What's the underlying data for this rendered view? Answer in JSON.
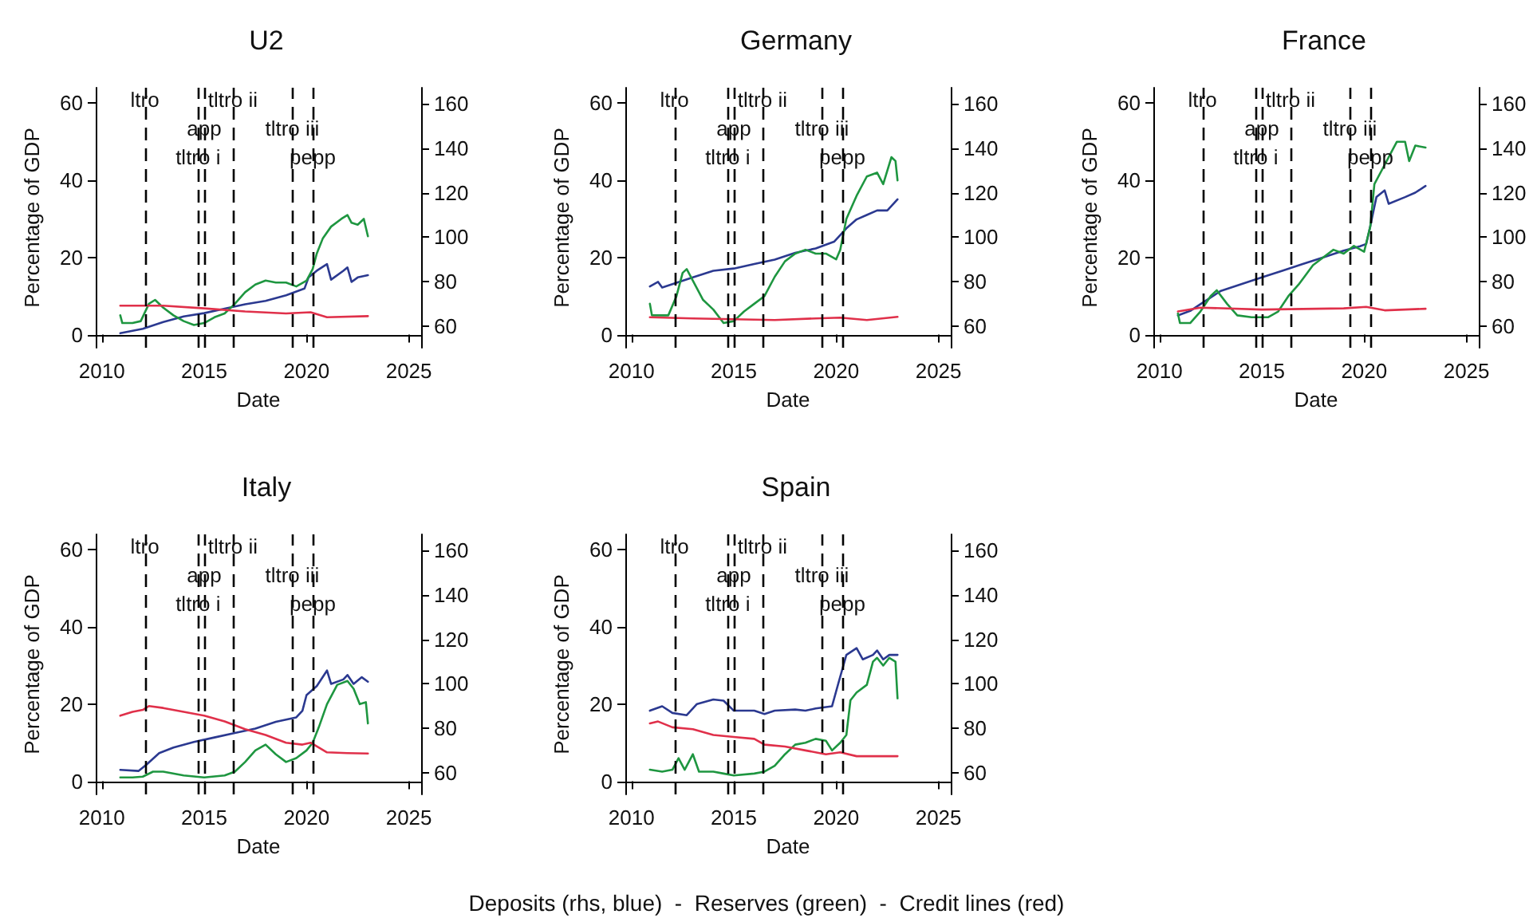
{
  "chart_data": [
    {
      "type": "line",
      "title": "U2",
      "xlabel": "Date",
      "ylabel": "Percentage of GDP",
      "xlim": [
        2009.7,
        2025.6
      ],
      "xticks": [
        2010,
        2015,
        2020,
        2025
      ],
      "ylim": [
        -3.4,
        64
      ],
      "yticks": [
        0,
        20,
        40,
        60
      ],
      "y2lim": [
        50.5,
        167
      ],
      "y2ticks": [
        60,
        80,
        100,
        120,
        140,
        160
      ],
      "grid": false,
      "marker": "none",
      "line_style": "solid",
      "ref_lines": [
        {
          "axis": "x",
          "value": 2012.1,
          "label": "ltro",
          "color": "#000000",
          "line_style": "dashed"
        },
        {
          "axis": "x",
          "value": 2015.0,
          "label": "app",
          "color": "#000000",
          "line_style": "dashed"
        },
        {
          "axis": "x",
          "value": 2014.7,
          "label": "tltro i",
          "color": "#000000",
          "line_style": "dashed"
        },
        {
          "axis": "x",
          "value": 2016.4,
          "label": "tltro ii",
          "color": "#000000",
          "line_style": "dashed"
        },
        {
          "axis": "x",
          "value": 2019.3,
          "label": "tltro iii",
          "color": "#000000",
          "line_style": "dashed"
        },
        {
          "axis": "x",
          "value": 2020.3,
          "label": "pepp",
          "color": "#000000",
          "line_style": "dashed"
        }
      ],
      "series": [
        {
          "color": "#2b3990",
          "axis": "y2",
          "x": [
            2010.9,
            2012,
            2013,
            2014,
            2015,
            2016,
            2017,
            2018,
            2019,
            2019.9,
            2020.1,
            2020.5,
            2021,
            2021.2,
            2021.8,
            2022,
            2022.2,
            2022.5,
            2023
          ],
          "values": [
            57,
            59,
            62,
            64.5,
            66,
            68,
            70,
            71.5,
            74,
            77,
            82,
            85,
            88,
            81,
            85,
            86.5,
            80,
            82,
            83
          ]
        },
        {
          "color": "#1e9640",
          "x": [
            2010.9,
            2011,
            2011.5,
            2011.9,
            2012.3,
            2012.6,
            2013,
            2013.5,
            2014,
            2014.5,
            2015,
            2015.5,
            2016,
            2016.5,
            2017,
            2017.5,
            2018,
            2018.5,
            2019,
            2019.5,
            2020,
            2020.3,
            2020.5,
            2020.8,
            2021.2,
            2021.7,
            2022,
            2022.2,
            2022.5,
            2022.8,
            2023
          ],
          "values": [
            5,
            3,
            3,
            3.5,
            8,
            9,
            7,
            5,
            3.5,
            2.5,
            3,
            4.5,
            5.5,
            8,
            11,
            13,
            14,
            13.5,
            13.5,
            12.5,
            14,
            17,
            21,
            25,
            28,
            30,
            31,
            29,
            28.5,
            30,
            25.5
          ]
        },
        {
          "color": "#e0304a",
          "x": [
            2010.9,
            2013,
            2015,
            2017,
            2019,
            2020.2,
            2021,
            2023
          ],
          "values": [
            7.5,
            7.5,
            6.8,
            6,
            5.5,
            5.8,
            4.5,
            4.8
          ]
        }
      ]
    },
    {
      "type": "line",
      "title": "Germany",
      "xlabel": "Date",
      "ylabel": "Percentage of GDP",
      "xlim": [
        2009.7,
        2025.6
      ],
      "xticks": [
        2010,
        2015,
        2020,
        2025
      ],
      "ylim": [
        -3.4,
        64
      ],
      "yticks": [
        0,
        20,
        40,
        60
      ],
      "y2lim": [
        50.5,
        167
      ],
      "y2ticks": [
        60,
        80,
        100,
        120,
        140,
        160
      ],
      "grid": false,
      "marker": "none",
      "line_style": "solid",
      "ref_lines": [
        {
          "axis": "x",
          "value": 2012.1,
          "label": "ltro",
          "color": "#000000",
          "line_style": "dashed"
        },
        {
          "axis": "x",
          "value": 2015.0,
          "label": "app",
          "color": "#000000",
          "line_style": "dashed"
        },
        {
          "axis": "x",
          "value": 2014.7,
          "label": "tltro i",
          "color": "#000000",
          "line_style": "dashed"
        },
        {
          "axis": "x",
          "value": 2016.4,
          "label": "tltro ii",
          "color": "#000000",
          "line_style": "dashed"
        },
        {
          "axis": "x",
          "value": 2019.3,
          "label": "tltro iii",
          "color": "#000000",
          "line_style": "dashed"
        },
        {
          "axis": "x",
          "value": 2020.3,
          "label": "pepp",
          "color": "#000000",
          "line_style": "dashed"
        }
      ],
      "series": [
        {
          "color": "#2b3990",
          "axis": "y2",
          "x": [
            2010.9,
            2011.3,
            2011.5,
            2012,
            2013,
            2014,
            2015,
            2016,
            2017,
            2018,
            2019,
            2019.9,
            2020.5,
            2021,
            2021.5,
            2022,
            2022.5,
            2023
          ],
          "values": [
            78,
            80,
            77.5,
            79,
            82,
            85,
            86,
            88,
            90,
            93,
            95,
            98,
            104,
            108,
            110,
            112,
            112,
            117
          ]
        },
        {
          "color": "#1e9640",
          "x": [
            2010.9,
            2011,
            2011.8,
            2012.2,
            2012.5,
            2012.7,
            2013,
            2013.5,
            2014,
            2014.5,
            2015,
            2015.5,
            2016,
            2016.5,
            2017,
            2017.5,
            2018,
            2018.5,
            2019,
            2019.5,
            2020,
            2020.2,
            2020.5,
            2021,
            2021.5,
            2022,
            2022.3,
            2022.7,
            2022.9,
            2023
          ],
          "values": [
            8,
            5,
            5,
            10,
            16,
            17,
            14,
            9,
            6.5,
            3,
            3.5,
            6,
            8,
            10,
            15,
            19,
            21,
            22,
            21,
            21,
            19.5,
            22,
            30,
            36,
            41,
            42,
            39,
            46,
            45,
            40
          ]
        },
        {
          "color": "#e0304a",
          "x": [
            2010.9,
            2013,
            2015,
            2017,
            2019,
            2020.2,
            2021.5,
            2023
          ],
          "values": [
            4.5,
            4.2,
            4,
            3.8,
            4.2,
            4.4,
            3.8,
            4.6
          ]
        }
      ]
    },
    {
      "type": "line",
      "title": "France",
      "xlabel": "Date",
      "ylabel": "Percentage of GDP",
      "xlim": [
        2009.7,
        2025.6
      ],
      "xticks": [
        2010,
        2015,
        2020,
        2025
      ],
      "ylim": [
        -3.4,
        64
      ],
      "yticks": [
        0,
        20,
        40,
        60
      ],
      "y2lim": [
        50.5,
        167
      ],
      "y2ticks": [
        60,
        80,
        100,
        120,
        140,
        160
      ],
      "grid": false,
      "marker": "none",
      "line_style": "solid",
      "ref_lines": [
        {
          "axis": "x",
          "value": 2012.1,
          "label": "ltro",
          "color": "#000000",
          "line_style": "dashed"
        },
        {
          "axis": "x",
          "value": 2015.0,
          "label": "app",
          "color": "#000000",
          "line_style": "dashed"
        },
        {
          "axis": "x",
          "value": 2014.7,
          "label": "tltro i",
          "color": "#000000",
          "line_style": "dashed"
        },
        {
          "axis": "x",
          "value": 2016.4,
          "label": "tltro ii",
          "color": "#000000",
          "line_style": "dashed"
        },
        {
          "axis": "x",
          "value": 2019.3,
          "label": "tltro iii",
          "color": "#000000",
          "line_style": "dashed"
        },
        {
          "axis": "x",
          "value": 2020.3,
          "label": "pepp",
          "color": "#000000",
          "line_style": "dashed"
        }
      ],
      "series": [
        {
          "color": "#2b3990",
          "axis": "y2",
          "x": [
            2010.9,
            2011.5,
            2012,
            2013,
            2014,
            2015,
            2016,
            2017,
            2018,
            2019,
            2019.8,
            2020.1,
            2020.3,
            2020.6,
            2021,
            2021.2,
            2022,
            2022.5,
            2023
          ],
          "values": [
            65,
            67,
            70,
            76,
            79,
            82,
            85,
            88,
            91,
            94,
            96,
            97,
            105,
            118,
            121,
            115,
            118,
            120,
            123
          ]
        },
        {
          "color": "#1e9640",
          "x": [
            2010.9,
            2011,
            2011.5,
            2012,
            2012.5,
            2012.8,
            2013.3,
            2013.8,
            2014.5,
            2015.3,
            2015.8,
            2016.3,
            2016.8,
            2017.5,
            2018,
            2018.5,
            2019,
            2019.5,
            2020,
            2020.3,
            2020.5,
            2021,
            2021.3,
            2021.6,
            2022,
            2022.2,
            2022.5,
            2023
          ],
          "values": [
            5.5,
            3,
            3,
            6,
            10,
            11.5,
            8,
            5,
            4.5,
            4.5,
            6,
            10,
            13,
            18,
            20,
            22,
            21,
            23,
            21.5,
            28,
            39,
            44,
            47,
            50,
            50,
            45,
            49,
            48.5
          ]
        },
        {
          "color": "#e0304a",
          "x": [
            2010.9,
            2012,
            2015,
            2019,
            2020.1,
            2021,
            2023
          ],
          "values": [
            6,
            7,
            6.5,
            6.8,
            7.2,
            6.3,
            6.7
          ]
        }
      ]
    },
    {
      "type": "line",
      "title": "Italy",
      "xlabel": "Date",
      "ylabel": "Percentage of GDP",
      "xlim": [
        2009.7,
        2025.6
      ],
      "xticks": [
        2010,
        2015,
        2020,
        2025
      ],
      "ylim": [
        -3.4,
        64
      ],
      "yticks": [
        0,
        20,
        40,
        60
      ],
      "y2lim": [
        50.5,
        167
      ],
      "y2ticks": [
        60,
        80,
        100,
        120,
        140,
        160
      ],
      "grid": false,
      "marker": "none",
      "line_style": "solid",
      "ref_lines": [
        {
          "axis": "x",
          "value": 2012.1,
          "label": "ltro",
          "color": "#000000",
          "line_style": "dashed"
        },
        {
          "axis": "x",
          "value": 2015.0,
          "label": "app",
          "color": "#000000",
          "line_style": "dashed"
        },
        {
          "axis": "x",
          "value": 2014.7,
          "label": "tltro i",
          "color": "#000000",
          "line_style": "dashed"
        },
        {
          "axis": "x",
          "value": 2016.4,
          "label": "tltro ii",
          "color": "#000000",
          "line_style": "dashed"
        },
        {
          "axis": "x",
          "value": 2019.3,
          "label": "tltro iii",
          "color": "#000000",
          "line_style": "dashed"
        },
        {
          "axis": "x",
          "value": 2020.3,
          "label": "pepp",
          "color": "#000000",
          "line_style": "dashed"
        }
      ],
      "series": [
        {
          "color": "#2b3990",
          "axis": "y2",
          "x": [
            2010.9,
            2011.8,
            2012.2,
            2012.8,
            2013.5,
            2014.5,
            2015.5,
            2016.5,
            2017.5,
            2018.5,
            2019.5,
            2019.8,
            2020,
            2020.5,
            2021,
            2021.2,
            2021.8,
            2022,
            2022.3,
            2022.7,
            2023
          ],
          "values": [
            61.5,
            61,
            64,
            69,
            71.5,
            74,
            76,
            78,
            80,
            83,
            85,
            88,
            95,
            99,
            106,
            100,
            102,
            104,
            100,
            103,
            101
          ]
        },
        {
          "color": "#1e9640",
          "x": [
            2010.9,
            2011.5,
            2012,
            2012.5,
            2013,
            2014,
            2015,
            2016,
            2016.5,
            2017,
            2017.5,
            2018,
            2018.5,
            2019,
            2019.5,
            2020,
            2020.3,
            2020.6,
            2021,
            2021.5,
            2022,
            2022.3,
            2022.6,
            2022.9,
            2023
          ],
          "values": [
            1,
            1,
            1.2,
            2.5,
            2.5,
            1.5,
            1,
            1.5,
            2.5,
            5,
            8,
            9.5,
            7,
            5,
            6,
            8,
            10,
            14,
            20,
            25,
            26,
            24,
            20,
            20.5,
            15
          ]
        },
        {
          "color": "#e0304a",
          "x": [
            2010.9,
            2011.5,
            2012,
            2012.3,
            2013,
            2014,
            2015,
            2016,
            2017,
            2018,
            2019,
            2019.8,
            2020.2,
            2021,
            2022,
            2023
          ],
          "values": [
            17,
            18,
            18.5,
            19.5,
            19,
            18,
            17,
            15.5,
            13.5,
            12,
            10,
            9.5,
            10,
            7.5,
            7.3,
            7.2
          ]
        }
      ]
    },
    {
      "type": "line",
      "title": "Spain",
      "xlabel": "Date",
      "ylabel": "Percentage of GDP",
      "xlim": [
        2009.7,
        2025.6
      ],
      "xticks": [
        2010,
        2015,
        2020,
        2025
      ],
      "ylim": [
        -3.4,
        64
      ],
      "yticks": [
        0,
        20,
        40,
        60
      ],
      "y2lim": [
        50.5,
        167
      ],
      "y2ticks": [
        60,
        80,
        100,
        120,
        140,
        160
      ],
      "grid": false,
      "marker": "none",
      "line_style": "solid",
      "annotations": [
        "Deposits (rhs, blue)  -  Reserves (green)  -  Credit lines (red)"
      ],
      "ref_lines": [
        {
          "axis": "x",
          "value": 2012.1,
          "label": "ltro",
          "color": "#000000",
          "line_style": "dashed"
        },
        {
          "axis": "x",
          "value": 2015.0,
          "label": "app",
          "color": "#000000",
          "line_style": "dashed"
        },
        {
          "axis": "x",
          "value": 2014.7,
          "label": "tltro i",
          "color": "#000000",
          "line_style": "dashed"
        },
        {
          "axis": "x",
          "value": 2016.4,
          "label": "tltro ii",
          "color": "#000000",
          "line_style": "dashed"
        },
        {
          "axis": "x",
          "value": 2019.3,
          "label": "tltro iii",
          "color": "#000000",
          "line_style": "dashed"
        },
        {
          "axis": "x",
          "value": 2020.3,
          "label": "pepp",
          "color": "#000000",
          "line_style": "dashed"
        }
      ],
      "series": [
        {
          "color": "#2b3990",
          "axis": "y2",
          "x": [
            2010.9,
            2011.5,
            2012,
            2012.7,
            2013.2,
            2014,
            2014.5,
            2015,
            2016,
            2016.5,
            2017,
            2018,
            2018.5,
            2019,
            2019.8,
            2020.1,
            2020.5,
            2021,
            2021.3,
            2021.8,
            2022,
            2022.3,
            2022.6,
            2023
          ],
          "values": [
            88,
            90,
            87,
            86,
            91,
            93,
            92.5,
            88,
            88,
            86.5,
            88,
            88.5,
            88,
            89,
            90,
            100,
            113,
            116,
            111,
            113,
            115,
            111,
            113,
            113
          ]
        },
        {
          "color": "#1e9640",
          "x": [
            2010.9,
            2011.5,
            2012,
            2012.3,
            2012.6,
            2013,
            2013.3,
            2014,
            2014.5,
            2015,
            2016,
            2016.5,
            2017,
            2017.5,
            2018,
            2018.5,
            2019,
            2019.5,
            2019.8,
            2020.2,
            2020.5,
            2020.7,
            2021,
            2021.5,
            2021.8,
            2022,
            2022.3,
            2022.6,
            2022.9,
            2023
          ],
          "values": [
            3,
            2.5,
            3,
            6,
            3,
            7,
            2.5,
            2.5,
            2,
            1.5,
            2,
            2.5,
            4,
            7,
            9.5,
            10,
            11,
            10.5,
            8,
            10,
            12,
            21,
            23,
            25,
            31,
            32,
            30,
            32,
            31,
            21.5
          ]
        },
        {
          "color": "#e0304a",
          "x": [
            2010.9,
            2011.3,
            2012,
            2013,
            2014,
            2015,
            2016,
            2016.5,
            2017.5,
            2018.5,
            2019.5,
            2020.2,
            2021,
            2022,
            2023
          ],
          "values": [
            15,
            15.5,
            14,
            13.5,
            12,
            11.5,
            11,
            9.5,
            9,
            8,
            7,
            7.5,
            6.5,
            6.5,
            6.5
          ]
        }
      ]
    }
  ]
}
